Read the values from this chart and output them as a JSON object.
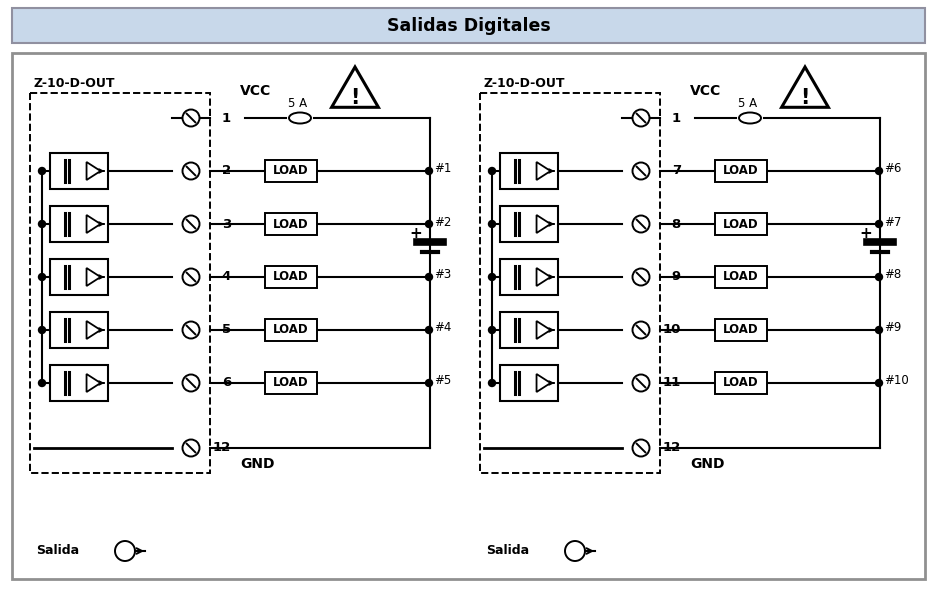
{
  "title": "Salidas Digitales",
  "title_bg": "#c8d8ea",
  "main_bg": "#ffffff",
  "border_color": "#a0a0a0",
  "fig_bg": "#ffffff",
  "panel1_label": "Z-10-D-OUT",
  "panel2_label": "Z-10-D-OUT",
  "salida_label": "Salida",
  "vcc_label": "VCC",
  "gnd_label": "GND",
  "fuse_label": "5 A",
  "load_labels_1": [
    "#1",
    "#2",
    "#3",
    "#4",
    "#5"
  ],
  "load_labels_2": [
    "#6",
    "#7",
    "#8",
    "#9",
    "#10"
  ],
  "fig_w": 9.37,
  "fig_h": 5.89,
  "dpi": 100
}
